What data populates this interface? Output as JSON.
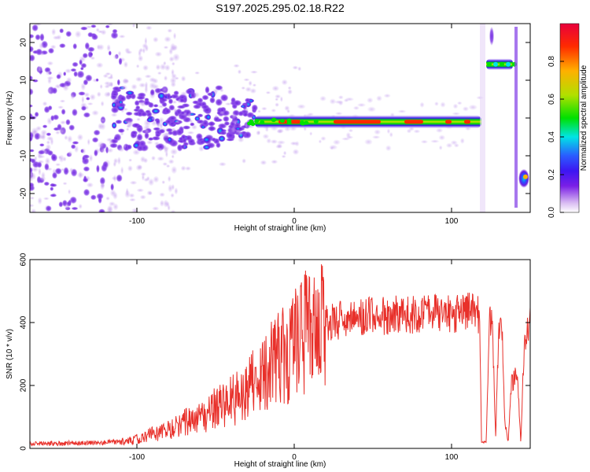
{
  "chart_data": [
    {
      "type": "heatmap",
      "title": "S197.2025.295.02.18.R22",
      "xlabel": "Height of straight line (km)",
      "ylabel": "Frequency (Hz)",
      "xlim": [
        -168,
        150
      ],
      "ylim": [
        -25,
        25
      ],
      "xticks": [
        -100,
        0,
        100
      ],
      "yticks": [
        -20,
        -10,
        0,
        10,
        20
      ],
      "colorbar": {
        "label": "Normalized spectral amplitude",
        "range": [
          0,
          1
        ],
        "ticks": [
          "0.0",
          "0.2",
          "0.4",
          "0.6",
          "0.8"
        ],
        "colormap": [
          "#ffffff",
          "#d9bcf2",
          "#7a1fe6",
          "#3d16f2",
          "#2a5cff",
          "#00e5e5",
          "#00e000",
          "#b0e000",
          "#ffb000",
          "#ff2a00",
          "#e8003c"
        ]
      },
      "features": [
        {
          "name": "noise band",
          "x_range": [
            -168,
            -95
          ],
          "freq_range": [
            -25,
            25
          ],
          "amplitude": "low"
        },
        {
          "name": "blob cluster",
          "x_range": [
            -115,
            -25
          ],
          "freq_range": [
            -10,
            10
          ],
          "amplitude": "0.1-0.4"
        },
        {
          "name": "main line",
          "x_range": [
            -25,
            119
          ],
          "freq": -1,
          "amplitude": "0.6-0.95"
        },
        {
          "name": "upper segment",
          "x_range": [
            119,
            141
          ],
          "freq": 14,
          "amplitude": "0.3-0.6"
        },
        {
          "name": "edge spot",
          "x_range": [
            141,
            150
          ],
          "freq": -16,
          "amplitude": "0.3"
        }
      ]
    },
    {
      "type": "line",
      "title": "",
      "xlabel": "Height of straight line (km)",
      "ylabel": "SNR (10 * v/v)",
      "xlim": [
        -168,
        150
      ],
      "ylim": [
        0,
        600
      ],
      "xticks": [
        -100,
        0,
        100
      ],
      "yticks": [
        0,
        200,
        400,
        600
      ],
      "series": [
        {
          "name": "SNR",
          "color": "#e8302a",
          "x": [
            -168,
            -150,
            -130,
            -110,
            -100,
            -90,
            -80,
            -70,
            -60,
            -50,
            -40,
            -30,
            -20,
            -10,
            0,
            10,
            20,
            30,
            40,
            50,
            60,
            70,
            80,
            90,
            100,
            110,
            118,
            119,
            122,
            124,
            126,
            128,
            130,
            132,
            134,
            136,
            138,
            140,
            142,
            144,
            146,
            148,
            150
          ],
          "values": [
            15,
            15,
            18,
            20,
            30,
            45,
            60,
            80,
            100,
            130,
            150,
            190,
            230,
            290,
            330,
            380,
            395,
            410,
            415,
            420,
            425,
            430,
            425,
            430,
            430,
            435,
            420,
            20,
            20,
            400,
            400,
            30,
            380,
            380,
            80,
            20,
            200,
            220,
            240,
            15,
            300,
            380,
            420
          ]
        }
      ]
    }
  ]
}
